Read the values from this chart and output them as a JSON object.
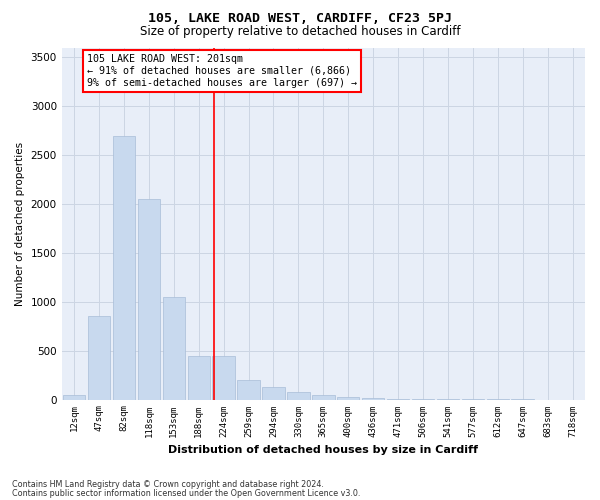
{
  "title1": "105, LAKE ROAD WEST, CARDIFF, CF23 5PJ",
  "title2": "Size of property relative to detached houses in Cardiff",
  "xlabel": "Distribution of detached houses by size in Cardiff",
  "ylabel": "Number of detached properties",
  "categories": [
    "12sqm",
    "47sqm",
    "82sqm",
    "118sqm",
    "153sqm",
    "188sqm",
    "224sqm",
    "259sqm",
    "294sqm",
    "330sqm",
    "365sqm",
    "400sqm",
    "436sqm",
    "471sqm",
    "506sqm",
    "541sqm",
    "577sqm",
    "612sqm",
    "647sqm",
    "683sqm",
    "718sqm"
  ],
  "values": [
    50,
    850,
    2700,
    2050,
    1050,
    450,
    450,
    200,
    130,
    80,
    50,
    30,
    20,
    10,
    5,
    3,
    2,
    1,
    1,
    0,
    0
  ],
  "bar_color": "#c8d9ee",
  "bar_edge_color": "#a8bdd8",
  "grid_color": "#ccd5e3",
  "background_color": "#e8eef8",
  "red_line_x": 5.62,
  "annotation_text1": "105 LAKE ROAD WEST: 201sqm",
  "annotation_text2": "← 91% of detached houses are smaller (6,866)",
  "annotation_text3": "9% of semi-detached houses are larger (697) →",
  "ylim": [
    0,
    3600
  ],
  "yticks": [
    0,
    500,
    1000,
    1500,
    2000,
    2500,
    3000,
    3500
  ],
  "footnote1": "Contains HM Land Registry data © Crown copyright and database right 2024.",
  "footnote2": "Contains public sector information licensed under the Open Government Licence v3.0."
}
